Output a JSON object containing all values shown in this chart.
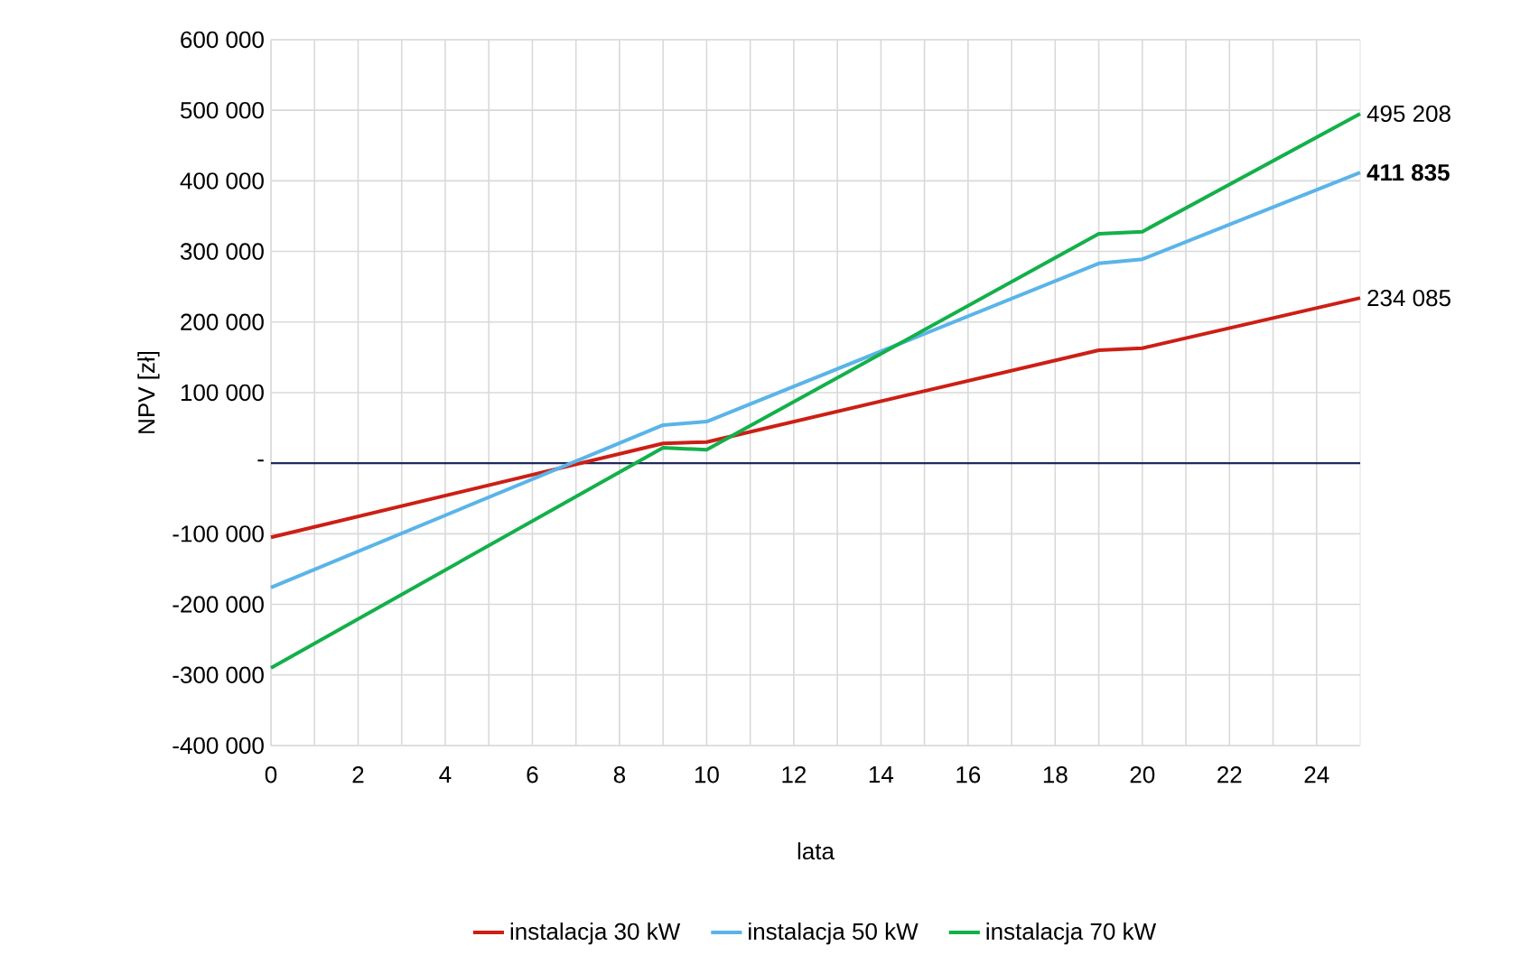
{
  "chart_data": {
    "type": "line",
    "xlabel": "lata",
    "ylabel": "NPV [zł]",
    "xlim": [
      0,
      25
    ],
    "ylim": [
      -400000,
      600000
    ],
    "xticks": [
      0,
      {
        "value": 1,
        "label": null
      },
      2,
      {
        "value": 3,
        "label": null
      },
      4,
      {
        "value": 5,
        "label": null
      },
      6,
      {
        "value": 7,
        "label": null
      },
      8,
      {
        "value": 9,
        "label": null
      },
      10,
      {
        "value": 11,
        "label": null
      },
      12,
      {
        "value": 13,
        "label": null
      },
      14,
      {
        "value": 15,
        "label": null
      },
      16,
      {
        "value": 17,
        "label": null
      },
      18,
      {
        "value": 19,
        "label": null
      },
      20,
      {
        "value": 21,
        "label": null
      },
      22,
      {
        "value": 23,
        "label": null
      },
      24
    ],
    "yticks": [
      {
        "value": -400000,
        "label": "-400 000"
      },
      {
        "value": -300000,
        "label": "-300 000"
      },
      {
        "value": -200000,
        "label": "-200 000"
      },
      {
        "value": -100000,
        "label": "-100 000"
      },
      {
        "value": 0,
        "label": "-"
      },
      {
        "value": 100000,
        "label": "100 000"
      },
      {
        "value": 200000,
        "label": "200 000"
      },
      {
        "value": 300000,
        "label": "300 000"
      },
      {
        "value": 400000,
        "label": "400 000"
      },
      {
        "value": 500000,
        "label": "500 000"
      },
      {
        "value": 600000,
        "label": "600 000"
      }
    ],
    "grid": true,
    "legend": "bottom",
    "marker": "none",
    "line_style": "solid",
    "series": [
      {
        "name": "instalacja 30 kW",
        "color": "#cc1f16",
        "x": [
          0,
          9,
          10,
          19,
          20,
          25
        ],
        "values": [
          -105000,
          28000,
          30000,
          160000,
          163000,
          234085
        ],
        "value_labels": [
          null,
          null,
          null,
          null,
          null,
          "234 085"
        ]
      },
      {
        "name": "instalacja 50 kW",
        "color": "#5ab4e8",
        "x": [
          0,
          9,
          10,
          19,
          20,
          25
        ],
        "values": [
          -176000,
          54000,
          59000,
          283000,
          289000,
          411835
        ],
        "value_labels": [
          null,
          null,
          null,
          null,
          null,
          "**411 835**"
        ]
      },
      {
        "name": "instalacja 70 kW",
        "color": "#13b04a",
        "x": [
          0,
          9,
          10,
          19,
          20,
          25
        ],
        "values": [
          -290000,
          22000,
          19000,
          325000,
          328000,
          495208
        ],
        "value_labels": [
          null,
          null,
          null,
          null,
          null,
          "495 208"
        ]
      }
    ],
    "ref_lines": [
      {
        "axis": "y",
        "value": 0,
        "color": "#1f2a5c"
      }
    ]
  }
}
